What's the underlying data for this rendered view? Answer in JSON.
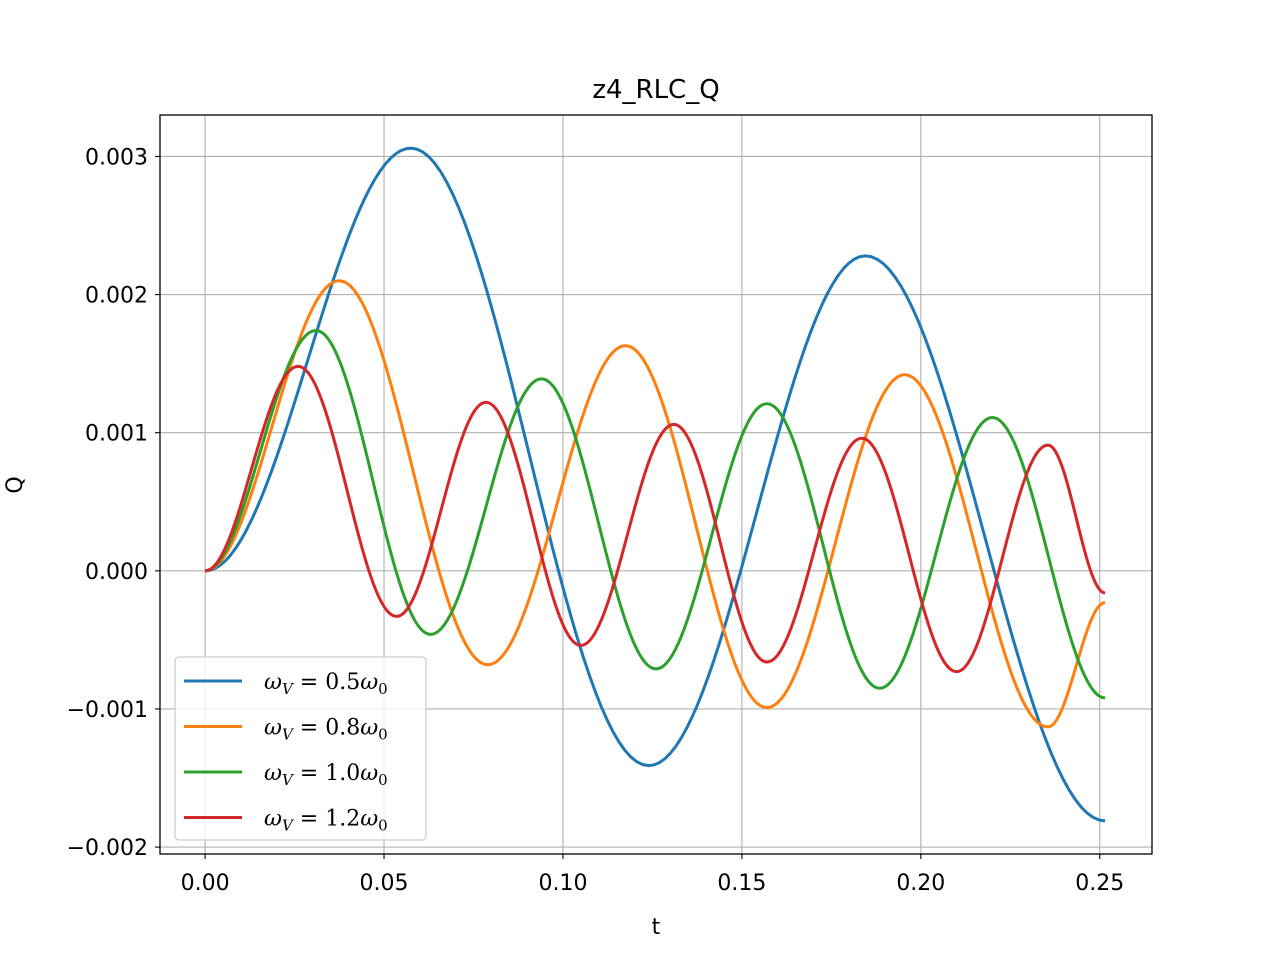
{
  "chart_data": {
    "type": "line",
    "title": "z4_RLC_Q",
    "xlabel": "t",
    "ylabel": "Q",
    "xlim": [
      -0.0126,
      0.2646
    ],
    "ylim": [
      -0.00205,
      0.0033
    ],
    "xticks": [
      0.0,
      0.05,
      0.1,
      0.15,
      0.2,
      0.25
    ],
    "xtick_labels": [
      "0.00",
      "0.05",
      "0.10",
      "0.15",
      "0.20",
      "0.25"
    ],
    "yticks": [
      -0.002,
      -0.001,
      0.0,
      0.001,
      0.002,
      0.003
    ],
    "ytick_labels": [
      "−0.002",
      "−0.001",
      "0.000",
      "0.001",
      "0.002",
      "0.003"
    ],
    "grid": true,
    "legend_position": "lower-left",
    "t_range": [
      0.0,
      0.2515
    ],
    "series": [
      {
        "name": "ωV = 0.5ω0",
        "label_parts": {
          "lhs": "ω",
          "lhs_sub": "V",
          "eq": " = 0.5",
          "rhs": "ω",
          "rhs_sub": "0"
        },
        "color": "#1f77b4",
        "points": [
          [
            0.0,
            0.0
          ],
          [
            0.0575,
            0.00306
          ],
          [
            0.124,
            -0.00141
          ],
          [
            0.1845,
            0.00228
          ],
          [
            0.2515,
            -0.00181
          ]
        ]
      },
      {
        "name": "ωV = 0.8ω0",
        "label_parts": {
          "lhs": "ω",
          "lhs_sub": "V",
          "eq": " = 0.8",
          "rhs": "ω",
          "rhs_sub": "0"
        },
        "color": "#ff7f0e",
        "points": [
          [
            0.0,
            0.0
          ],
          [
            0.0375,
            0.0021
          ],
          [
            0.079,
            -0.00068
          ],
          [
            0.1175,
            0.00163
          ],
          [
            0.157,
            -0.00099
          ],
          [
            0.1955,
            0.00142
          ],
          [
            0.2355,
            -0.00113
          ],
          [
            0.2515,
            -0.00023
          ]
        ]
      },
      {
        "name": "ωV = 1.0ω0",
        "label_parts": {
          "lhs": "ω",
          "lhs_sub": "V",
          "eq": " = 1.0",
          "rhs": "ω",
          "rhs_sub": "0"
        },
        "color": "#2ca02c",
        "points": [
          [
            0.0,
            0.0
          ],
          [
            0.031,
            0.00174
          ],
          [
            0.063,
            -0.00046
          ],
          [
            0.094,
            0.00139
          ],
          [
            0.126,
            -0.00071
          ],
          [
            0.157,
            0.00121
          ],
          [
            0.1885,
            -0.00085
          ],
          [
            0.22,
            0.00111
          ],
          [
            0.2515,
            -0.00092
          ]
        ]
      },
      {
        "name": "ωV = 1.2ω0",
        "label_parts": {
          "lhs": "ω",
          "lhs_sub": "V",
          "eq": " = 1.2",
          "rhs": "ω",
          "rhs_sub": "0"
        },
        "color": "#d62728",
        "points": [
          [
            0.0,
            0.0
          ],
          [
            0.026,
            0.00148
          ],
          [
            0.0535,
            -0.00033
          ],
          [
            0.0785,
            0.00122
          ],
          [
            0.105,
            -0.00054
          ],
          [
            0.131,
            0.00106
          ],
          [
            0.157,
            -0.00066
          ],
          [
            0.1835,
            0.00096
          ],
          [
            0.21,
            -0.00073
          ],
          [
            0.2355,
            0.00091
          ],
          [
            0.2515,
            -0.00016
          ]
        ]
      }
    ]
  }
}
